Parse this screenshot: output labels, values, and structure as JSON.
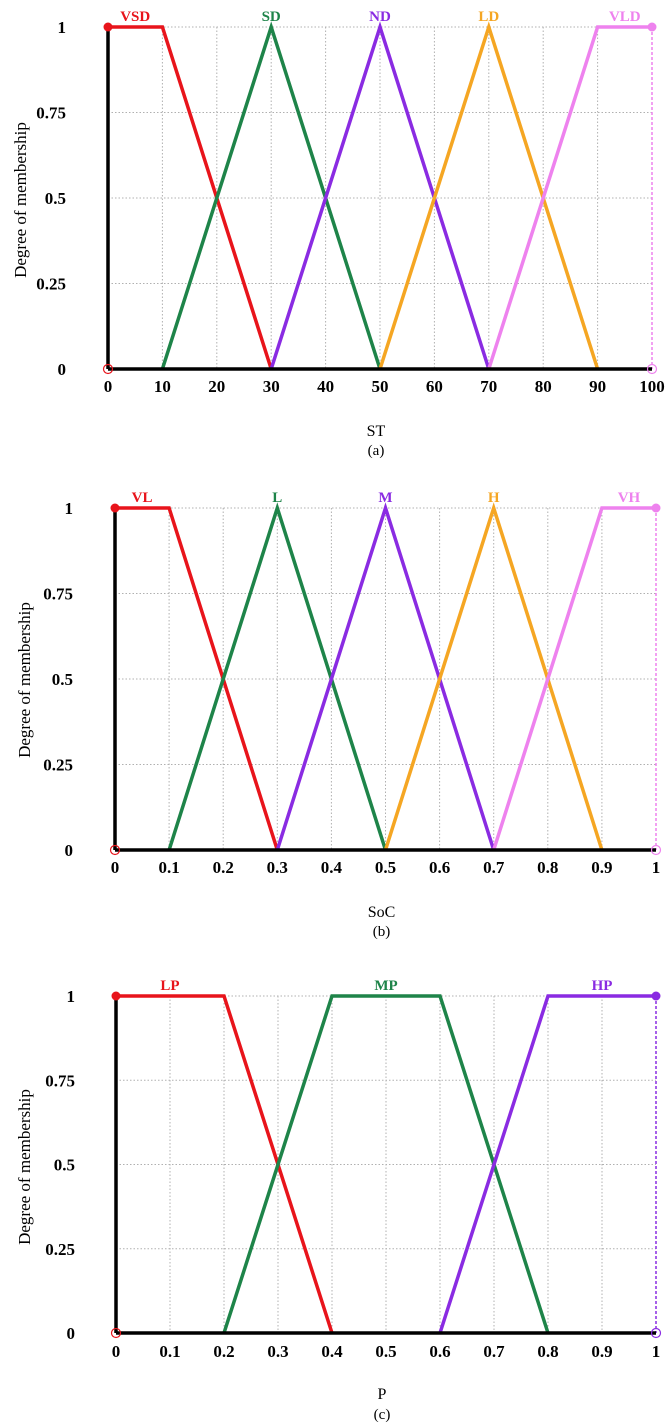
{
  "charts": [
    {
      "type": "line",
      "subcaption": "(a)",
      "xlabel": "ST",
      "ylabel": "Degree of membership",
      "xlim": [
        0,
        100
      ],
      "ylim": [
        0,
        1
      ],
      "xticks": [
        "0",
        "10",
        "20",
        "30",
        "40",
        "50",
        "60",
        "70",
        "80",
        "90",
        "100"
      ],
      "yticks": [
        "0",
        "0.25",
        "0.5",
        "0.75",
        "1"
      ],
      "grid": true,
      "series": [
        {
          "name": "VSD",
          "color": "#e8141b",
          "x": [
            0,
            10,
            30
          ],
          "y": [
            1,
            1,
            0
          ]
        },
        {
          "name": "SD",
          "color": "#1e8449",
          "x": [
            10,
            30,
            50
          ],
          "y": [
            0,
            1,
            0
          ]
        },
        {
          "name": "ND",
          "color": "#8a2be2",
          "x": [
            30,
            50,
            70
          ],
          "y": [
            0,
            1,
            0
          ]
        },
        {
          "name": "LD",
          "color": "#f5a623",
          "x": [
            50,
            70,
            90
          ],
          "y": [
            0,
            1,
            0
          ]
        },
        {
          "name": "VLD",
          "color": "#ee82ee",
          "x": [
            70,
            90,
            100
          ],
          "y": [
            0,
            1,
            1
          ]
        }
      ]
    },
    {
      "type": "line",
      "subcaption": "(b)",
      "xlabel": "SoC",
      "ylabel": "Degree of membership",
      "xlim": [
        0,
        1
      ],
      "ylim": [
        0,
        1
      ],
      "xticks": [
        "0",
        "0.1",
        "0.2",
        "0.3",
        "0.4",
        "0.5",
        "0.6",
        "0.7",
        "0.8",
        "0.9",
        "1"
      ],
      "yticks": [
        "0",
        "0.25",
        "0.5",
        "0.75",
        "1"
      ],
      "grid": true,
      "series": [
        {
          "name": "VL",
          "color": "#e8141b",
          "x": [
            0,
            0.1,
            0.3
          ],
          "y": [
            1,
            1,
            0
          ]
        },
        {
          "name": "L",
          "color": "#1e8449",
          "x": [
            0.1,
            0.3,
            0.5
          ],
          "y": [
            0,
            1,
            0
          ]
        },
        {
          "name": "M",
          "color": "#8a2be2",
          "x": [
            0.3,
            0.5,
            0.7
          ],
          "y": [
            0,
            1,
            0
          ]
        },
        {
          "name": "H",
          "color": "#f5a623",
          "x": [
            0.5,
            0.7,
            0.9
          ],
          "y": [
            0,
            1,
            0
          ]
        },
        {
          "name": "VH",
          "color": "#ee82ee",
          "x": [
            0.7,
            0.9,
            1
          ],
          "y": [
            0,
            1,
            1
          ]
        }
      ]
    },
    {
      "type": "line",
      "subcaption": "(c)",
      "xlabel": "P",
      "ylabel": "Degree of membership",
      "xlim": [
        0,
        1
      ],
      "ylim": [
        0,
        1
      ],
      "xticks": [
        "0",
        "0.1",
        "0.2",
        "0.3",
        "0.4",
        "0.5",
        "0.6",
        "0.7",
        "0.8",
        "0.9",
        "1"
      ],
      "yticks": [
        "0",
        "0.25",
        "0.5",
        "0.75",
        "1"
      ],
      "grid": true,
      "series": [
        {
          "name": "LP",
          "color": "#e8141b",
          "x": [
            0,
            0.2,
            0.4
          ],
          "y": [
            1,
            1,
            0
          ]
        },
        {
          "name": "MP",
          "color": "#1e8449",
          "x": [
            0.2,
            0.4,
            0.6,
            0.8
          ],
          "y": [
            0,
            1,
            1,
            0
          ]
        },
        {
          "name": "HP",
          "color": "#8a2be2",
          "x": [
            0.6,
            0.8,
            1
          ],
          "y": [
            0,
            1,
            1
          ]
        }
      ]
    }
  ]
}
